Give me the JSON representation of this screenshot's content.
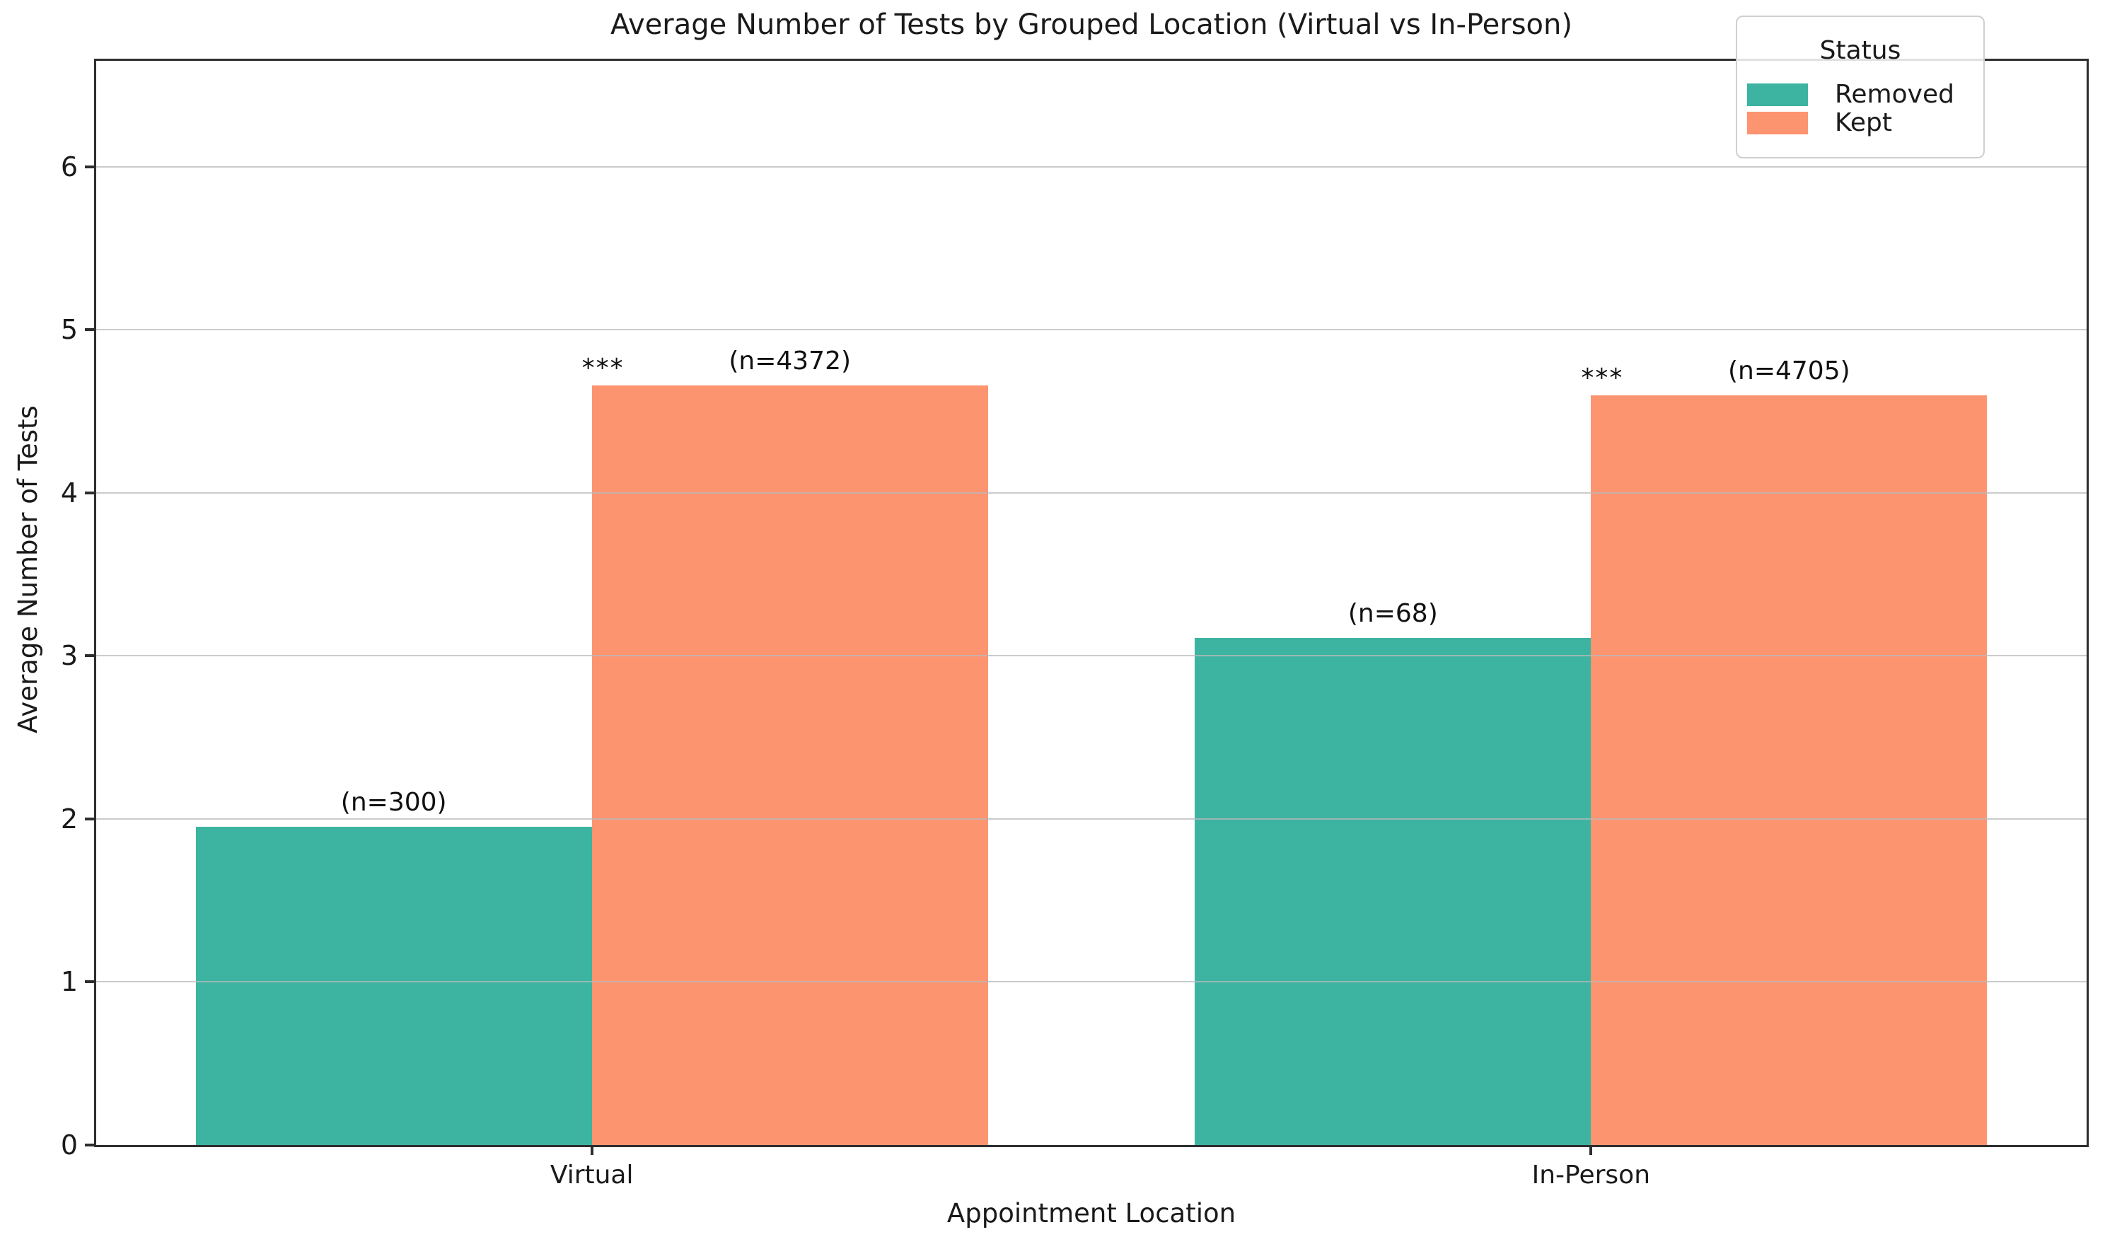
{
  "chart_data": {
    "type": "bar",
    "title": "Average Number of Tests by Grouped Location (Virtual vs In-Person)",
    "xlabel": "Appointment Location",
    "ylabel": "Average Number of Tests",
    "categories": [
      "Virtual",
      "In-Person"
    ],
    "series": [
      {
        "name": "Removed",
        "color": "#3CB4A1",
        "values": [
          1.95,
          3.11
        ],
        "n_labels": [
          "(n=300)",
          "(n=68)"
        ]
      },
      {
        "name": "Kept",
        "color": "#FC9470",
        "values": [
          4.66,
          4.6
        ],
        "n_labels": [
          "(n=4372)",
          "(n=4705)"
        ]
      }
    ],
    "significance_by_category": [
      "***",
      "***"
    ],
    "ylim": [
      0,
      6.65
    ],
    "yticks": [
      0,
      1,
      2,
      3,
      4,
      5,
      6
    ],
    "grid": true,
    "legend": {
      "title": "Status",
      "entries": [
        "Removed",
        "Kept"
      ],
      "position": "upper-right"
    }
  },
  "colors": {
    "removed": "#3CB4A1",
    "kept": "#FC9470",
    "gridline": "#b9b9b9",
    "spine": "#2e2e2e",
    "text": "#111111"
  }
}
